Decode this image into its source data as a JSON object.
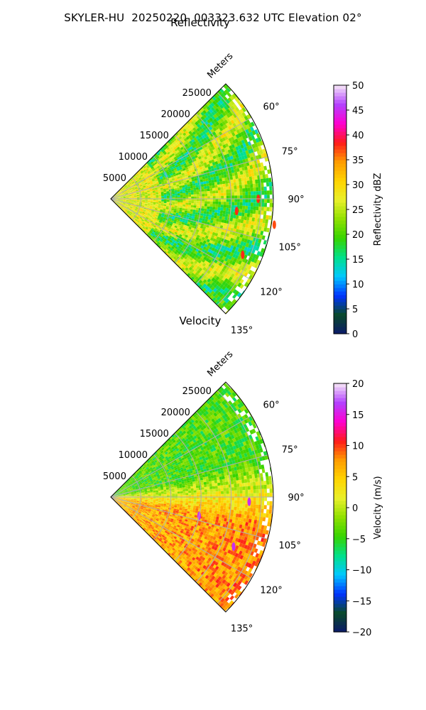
{
  "suptitle": "SKYLER-HU  20250220  003323.632 UTC Elevation 02°",
  "chart_data": [
    {
      "type": "heatmap",
      "subtype": "polar-sector",
      "title": "Reflectivity",
      "radial_label": "Meters",
      "radial_ticks": [
        5000,
        10000,
        15000,
        20000,
        25000
      ],
      "radial_tick_labels": [
        "5000",
        "10000",
        "15000",
        "20000",
        "25000"
      ],
      "rmax": 27000,
      "azimuth_range": [
        45,
        135
      ],
      "azimuth_ticks": [
        60,
        75,
        90,
        105,
        120,
        135
      ],
      "azimuth_tick_labels": [
        "60°",
        "75°",
        "90°",
        "105°",
        "120°",
        "135°"
      ],
      "grid": true,
      "colorbar": {
        "label": "Reflectivity dBZ",
        "range": [
          0,
          50
        ],
        "ticks": [
          0,
          5,
          10,
          15,
          20,
          25,
          30,
          35,
          40,
          45,
          50
        ],
        "tick_labels": [
          "0",
          "5",
          "10",
          "15",
          "20",
          "25",
          "30",
          "35",
          "40",
          "45",
          "50"
        ]
      },
      "field_summary": {
        "typical_range": [
          18,
          30
        ],
        "near_range_value": 27,
        "isolated_maxima": [
          {
            "azimuth": 90,
            "range": 24500,
            "value": 38
          },
          {
            "azimuth": 95.5,
            "range": 21000,
            "value": 38
          },
          {
            "azimuth": 99,
            "range": 27500,
            "value": 37
          },
          {
            "azimuth": 113,
            "range": 23800,
            "value": 38
          }
        ]
      }
    },
    {
      "type": "heatmap",
      "subtype": "polar-sector",
      "title": "Velocity",
      "radial_label": "Meters",
      "radial_ticks": [
        5000,
        10000,
        15000,
        20000,
        25000
      ],
      "radial_tick_labels": [
        "5000",
        "10000",
        "15000",
        "20000",
        "25000"
      ],
      "rmax": 27000,
      "azimuth_range": [
        45,
        135
      ],
      "azimuth_ticks": [
        60,
        75,
        90,
        105,
        120,
        135
      ],
      "azimuth_tick_labels": [
        "60°",
        "75°",
        "90°",
        "105°",
        "120°",
        "135°"
      ],
      "grid": true,
      "colorbar": {
        "label": "Velocity (m/s)",
        "range": [
          -20,
          20
        ],
        "ticks": [
          -20,
          -15,
          -10,
          -5,
          0,
          5,
          10,
          15,
          20
        ],
        "tick_labels": [
          "−20",
          "−15",
          "−10",
          "−5",
          "0",
          "5",
          "10",
          "15",
          "20"
        ]
      },
      "field_summary": {
        "inbound_sector": {
          "azimuth": [
            45,
            80
          ],
          "value": -4
        },
        "outbound_sector": {
          "azimuth": [
            95,
            135
          ],
          "value": 6
        },
        "isolated_maxima": [
          {
            "azimuth": 92,
            "range": 23000,
            "value": 16
          },
          {
            "azimuth": 102,
            "range": 15000,
            "value": 16
          },
          {
            "azimuth": 112,
            "range": 22000,
            "value": 16
          }
        ]
      }
    }
  ],
  "colormap": {
    "name": "radar-nws-style",
    "stops": [
      "#0b1a6a",
      "#0a4a2a",
      "#0033ff",
      "#00c8ff",
      "#00e08a",
      "#36d400",
      "#8fe000",
      "#e9f02a",
      "#ffd400",
      "#ff9c00",
      "#ff1a1a",
      "#ff00d0",
      "#b340ff",
      "#f6e6f6"
    ]
  }
}
